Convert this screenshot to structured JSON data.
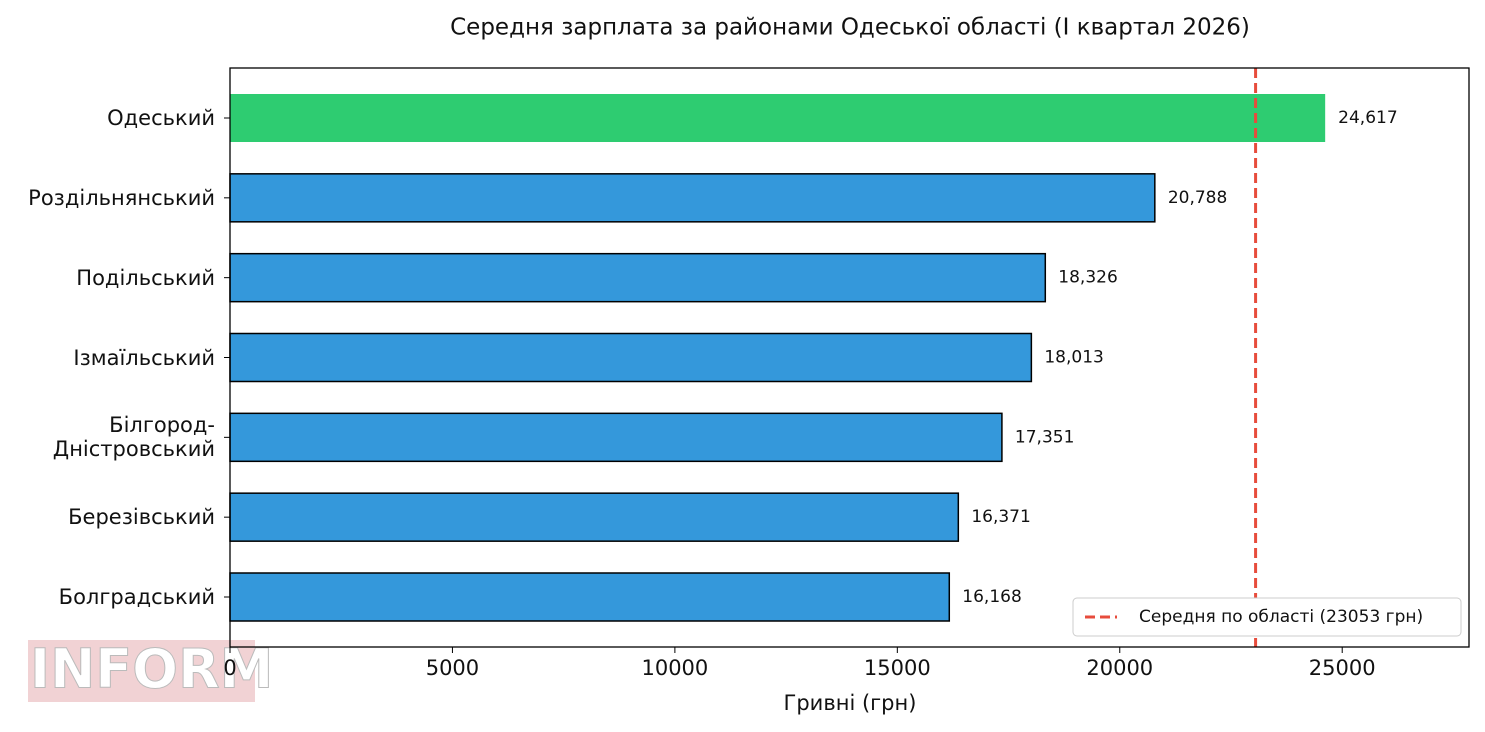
{
  "chart_data": {
    "type": "barh",
    "title": "Середня зарплата за районами Одеської області (I квартал 2026)",
    "xlabel": "Гривні (грн)",
    "categories": [
      "Одеський",
      "Роздільнянський",
      "Подільський",
      "Ізмаїльський",
      "Білгород-\nДністровський",
      "Березівський",
      "Болградський"
    ],
    "values": [
      24617,
      20788,
      18326,
      18013,
      17351,
      16371,
      16168
    ],
    "value_labels": [
      "24,617",
      "20,788",
      "18,326",
      "18,013",
      "17,351",
      "16,371",
      "16,168"
    ],
    "colors": [
      "#2ecc71",
      "#3498db",
      "#3498db",
      "#3498db",
      "#3498db",
      "#3498db",
      "#3498db"
    ],
    "xlim": [
      0,
      27850
    ],
    "xticks": [
      0,
      5000,
      10000,
      15000,
      20000,
      25000
    ],
    "reference_line": {
      "value": 23053,
      "label": "Середня по області (23053 грн)",
      "color": "#e74c3c"
    },
    "legend": "lower right",
    "watermark": "INFORM"
  }
}
